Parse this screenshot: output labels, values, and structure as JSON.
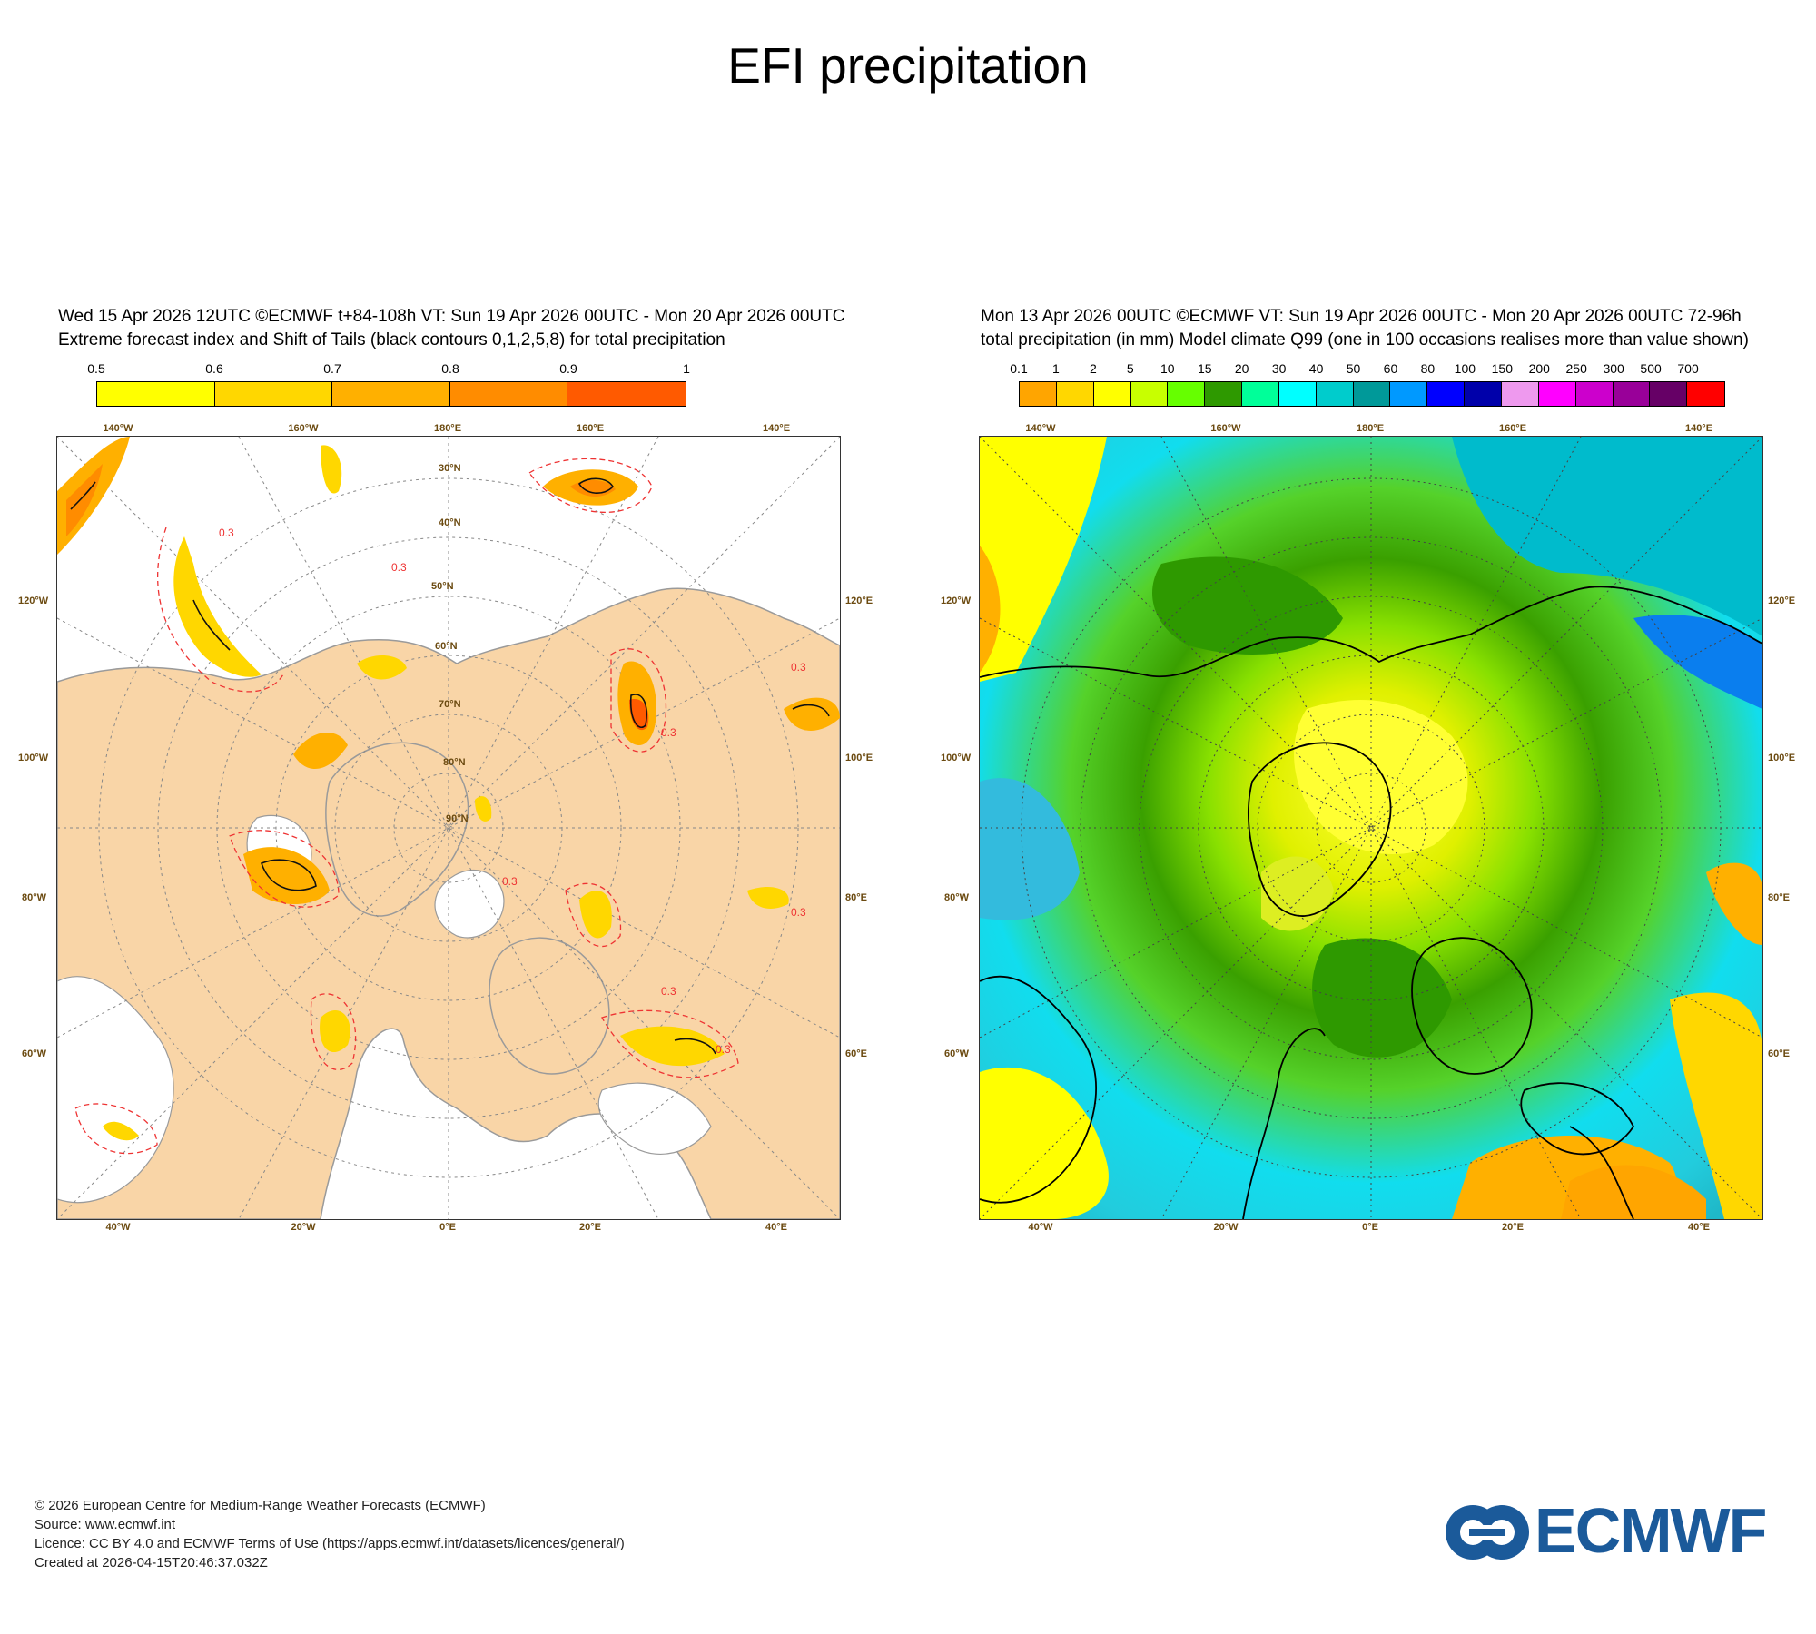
{
  "title": "EFI precipitation",
  "left_panel": {
    "header_line1": "Wed 15 Apr 2026 12UTC ©ECMWF t+84-108h  VT: Sun 19 Apr 2026 00UTC - Mon 20 Apr 2026 00UTC",
    "header_line2": "Extreme forecast index and Shift of Tails (black contours 0,1,2,5,8) for total precipitation",
    "colorbar_labels": [
      "0.5",
      "0.6",
      "0.7",
      "0.8",
      "0.9",
      "1"
    ],
    "colorbar_colors": [
      "#ffff00",
      "#ffd700",
      "#ffb000",
      "#ff8c00",
      "#ff5a00",
      "#ff0000"
    ],
    "contour_label": "0.3",
    "top_lon_labels": [
      "140°W",
      "160°W",
      "180°E",
      "160°E",
      "140°E"
    ],
    "bottom_lon_labels": [
      "40°W",
      "20°W",
      "0°E",
      "20°E",
      "40°E"
    ],
    "left_side_labels": [
      "120°W",
      "100°W",
      "80°W",
      "60°W"
    ],
    "right_side_labels": [
      "120°E",
      "100°E",
      "80°E",
      "60°E"
    ],
    "lat_labels": [
      "30°N",
      "40°N",
      "50°N",
      "60°N",
      "70°N",
      "80°N",
      "90°N"
    ]
  },
  "right_panel": {
    "header_line1": "Mon 13 Apr 2026 00UTC ©ECMWF VT: Sun 19 Apr 2026 00UTC - Mon 20 Apr 2026 00UTC   72-96h",
    "header_line2": "total precipitation (in mm)  Model climate Q99 (one in 100 occasions realises more than value shown)",
    "colorbar_labels": [
      "0.1",
      "1",
      "2",
      "5",
      "10",
      "15",
      "20",
      "30",
      "40",
      "50",
      "60",
      "80",
      "100",
      "150",
      "200",
      "250",
      "300",
      "500",
      "700"
    ],
    "colorbar_colors": [
      "#ffa500",
      "#ffd700",
      "#ffff00",
      "#c8ff00",
      "#66ff00",
      "#2e9900",
      "#00ff99",
      "#00ffff",
      "#00cccc",
      "#009999",
      "#0099ff",
      "#0000ff",
      "#0000aa",
      "#ee99ee",
      "#ff00ff",
      "#cc00cc",
      "#990099",
      "#660066",
      "#ff0000"
    ],
    "top_lon_labels": [
      "140°W",
      "160°W",
      "180°E",
      "160°E",
      "140°E"
    ],
    "bottom_lon_labels": [
      "40°W",
      "20°W",
      "0°E",
      "20°E",
      "40°E"
    ],
    "left_side_labels": [
      "120°W",
      "100°W",
      "80°W",
      "60°W"
    ],
    "right_side_labels": [
      "120°E",
      "100°E",
      "80°E",
      "60°E"
    ]
  },
  "footer": {
    "line1": "© 2026 European Centre for Medium-Range Weather Forecasts (ECMWF)",
    "line2": "Source: www.ecmwf.int",
    "line3": "Licence: CC BY 4.0 and ECMWF Terms of Use (https://apps.ecmwf.int/datasets/licences/general/)",
    "line4": "Created at 2026-04-15T20:46:37.032Z"
  },
  "logo_text": "ECMWF"
}
